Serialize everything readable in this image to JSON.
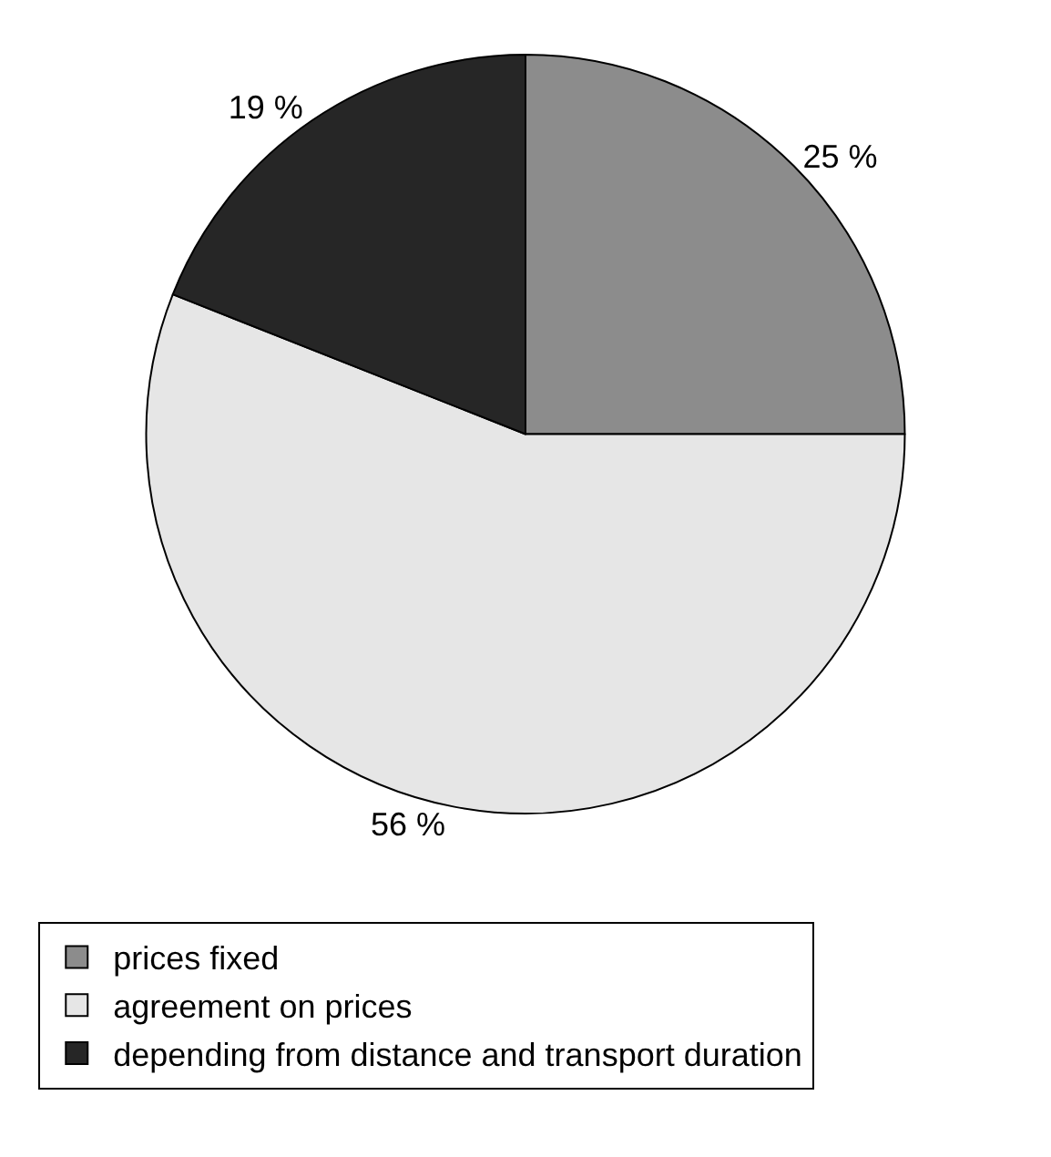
{
  "chart_data": {
    "type": "pie",
    "categories": [
      "prices fixed",
      "agreement on prices",
      "depending from distance and transport duration"
    ],
    "values": [
      25,
      56,
      19
    ],
    "value_labels": [
      "25 %",
      "56 %",
      "19 %"
    ],
    "colors": [
      "#8c8c8c",
      "#e6e6e6",
      "#262626"
    ],
    "legend": "bottom"
  }
}
